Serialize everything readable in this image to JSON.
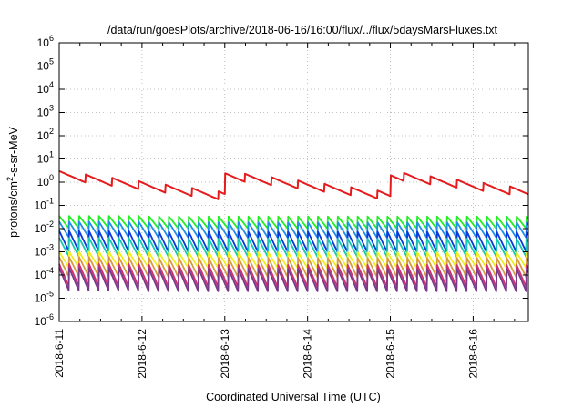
{
  "chart_data": {
    "type": "line",
    "title": "/data/run/goesPlots/archive/2018-06-16/16:00/flux/../flux/5daysMarsFluxes.txt",
    "xlabel": "Coordinated Universal Time (UTC)",
    "ylabel_base": "protons/cm",
    "ylabel_sup": "2",
    "ylabel_rest": "-s-sr-MeV",
    "ylog": true,
    "ylim": [
      1e-06,
      1000000.0
    ],
    "xlim": [
      "2018-06-11",
      "2018-06-16 16:00"
    ],
    "grid": true,
    "x_ticks": [
      "2018-6-11",
      "2018-6-12",
      "2018-6-13",
      "2018-6-14",
      "2018-6-15",
      "2018-6-16"
    ],
    "y_ticks": [
      {
        "base": "10",
        "exp": "-6"
      },
      {
        "base": "10",
        "exp": "-5"
      },
      {
        "base": "10",
        "exp": "-4"
      },
      {
        "base": "10",
        "exp": "-3"
      },
      {
        "base": "10",
        "exp": "-2"
      },
      {
        "base": "10",
        "exp": "-1"
      },
      {
        "base": "10",
        "exp": "0"
      },
      {
        "base": "10",
        "exp": "1"
      },
      {
        "base": "10",
        "exp": "2"
      },
      {
        "base": "10",
        "exp": "3"
      },
      {
        "base": "10",
        "exp": "4"
      },
      {
        "base": "10",
        "exp": "5"
      },
      {
        "base": "10",
        "exp": "6"
      }
    ],
    "series": [
      {
        "color": "#e41a1c",
        "cycle_days": 0.32,
        "low": 0.15,
        "high": 3.0,
        "envelope_days": 2.0
      },
      {
        "color": "#22ee22",
        "cycle_days": 0.12,
        "low": 0.01,
        "high": 0.035
      },
      {
        "color": "#1f8fe8",
        "cycle_days": 0.12,
        "low": 0.004,
        "high": 0.02
      },
      {
        "color": "#0a3ad8",
        "cycle_days": 0.12,
        "low": 0.001,
        "high": 0.008
      },
      {
        "color": "#18c8b0",
        "cycle_days": 0.12,
        "low": 0.0006,
        "high": 0.004
      },
      {
        "color": "#eeee20",
        "cycle_days": 0.12,
        "low": 0.0002,
        "high": 0.001
      },
      {
        "color": "#d89a40",
        "cycle_days": 0.12,
        "low": 8e-05,
        "high": 0.0006
      },
      {
        "color": "#d03070",
        "cycle_days": 0.12,
        "low": 3e-05,
        "high": 0.0003
      },
      {
        "color": "#7a3a8a",
        "cycle_days": 0.12,
        "low": 2e-05,
        "high": 0.0002
      }
    ]
  }
}
